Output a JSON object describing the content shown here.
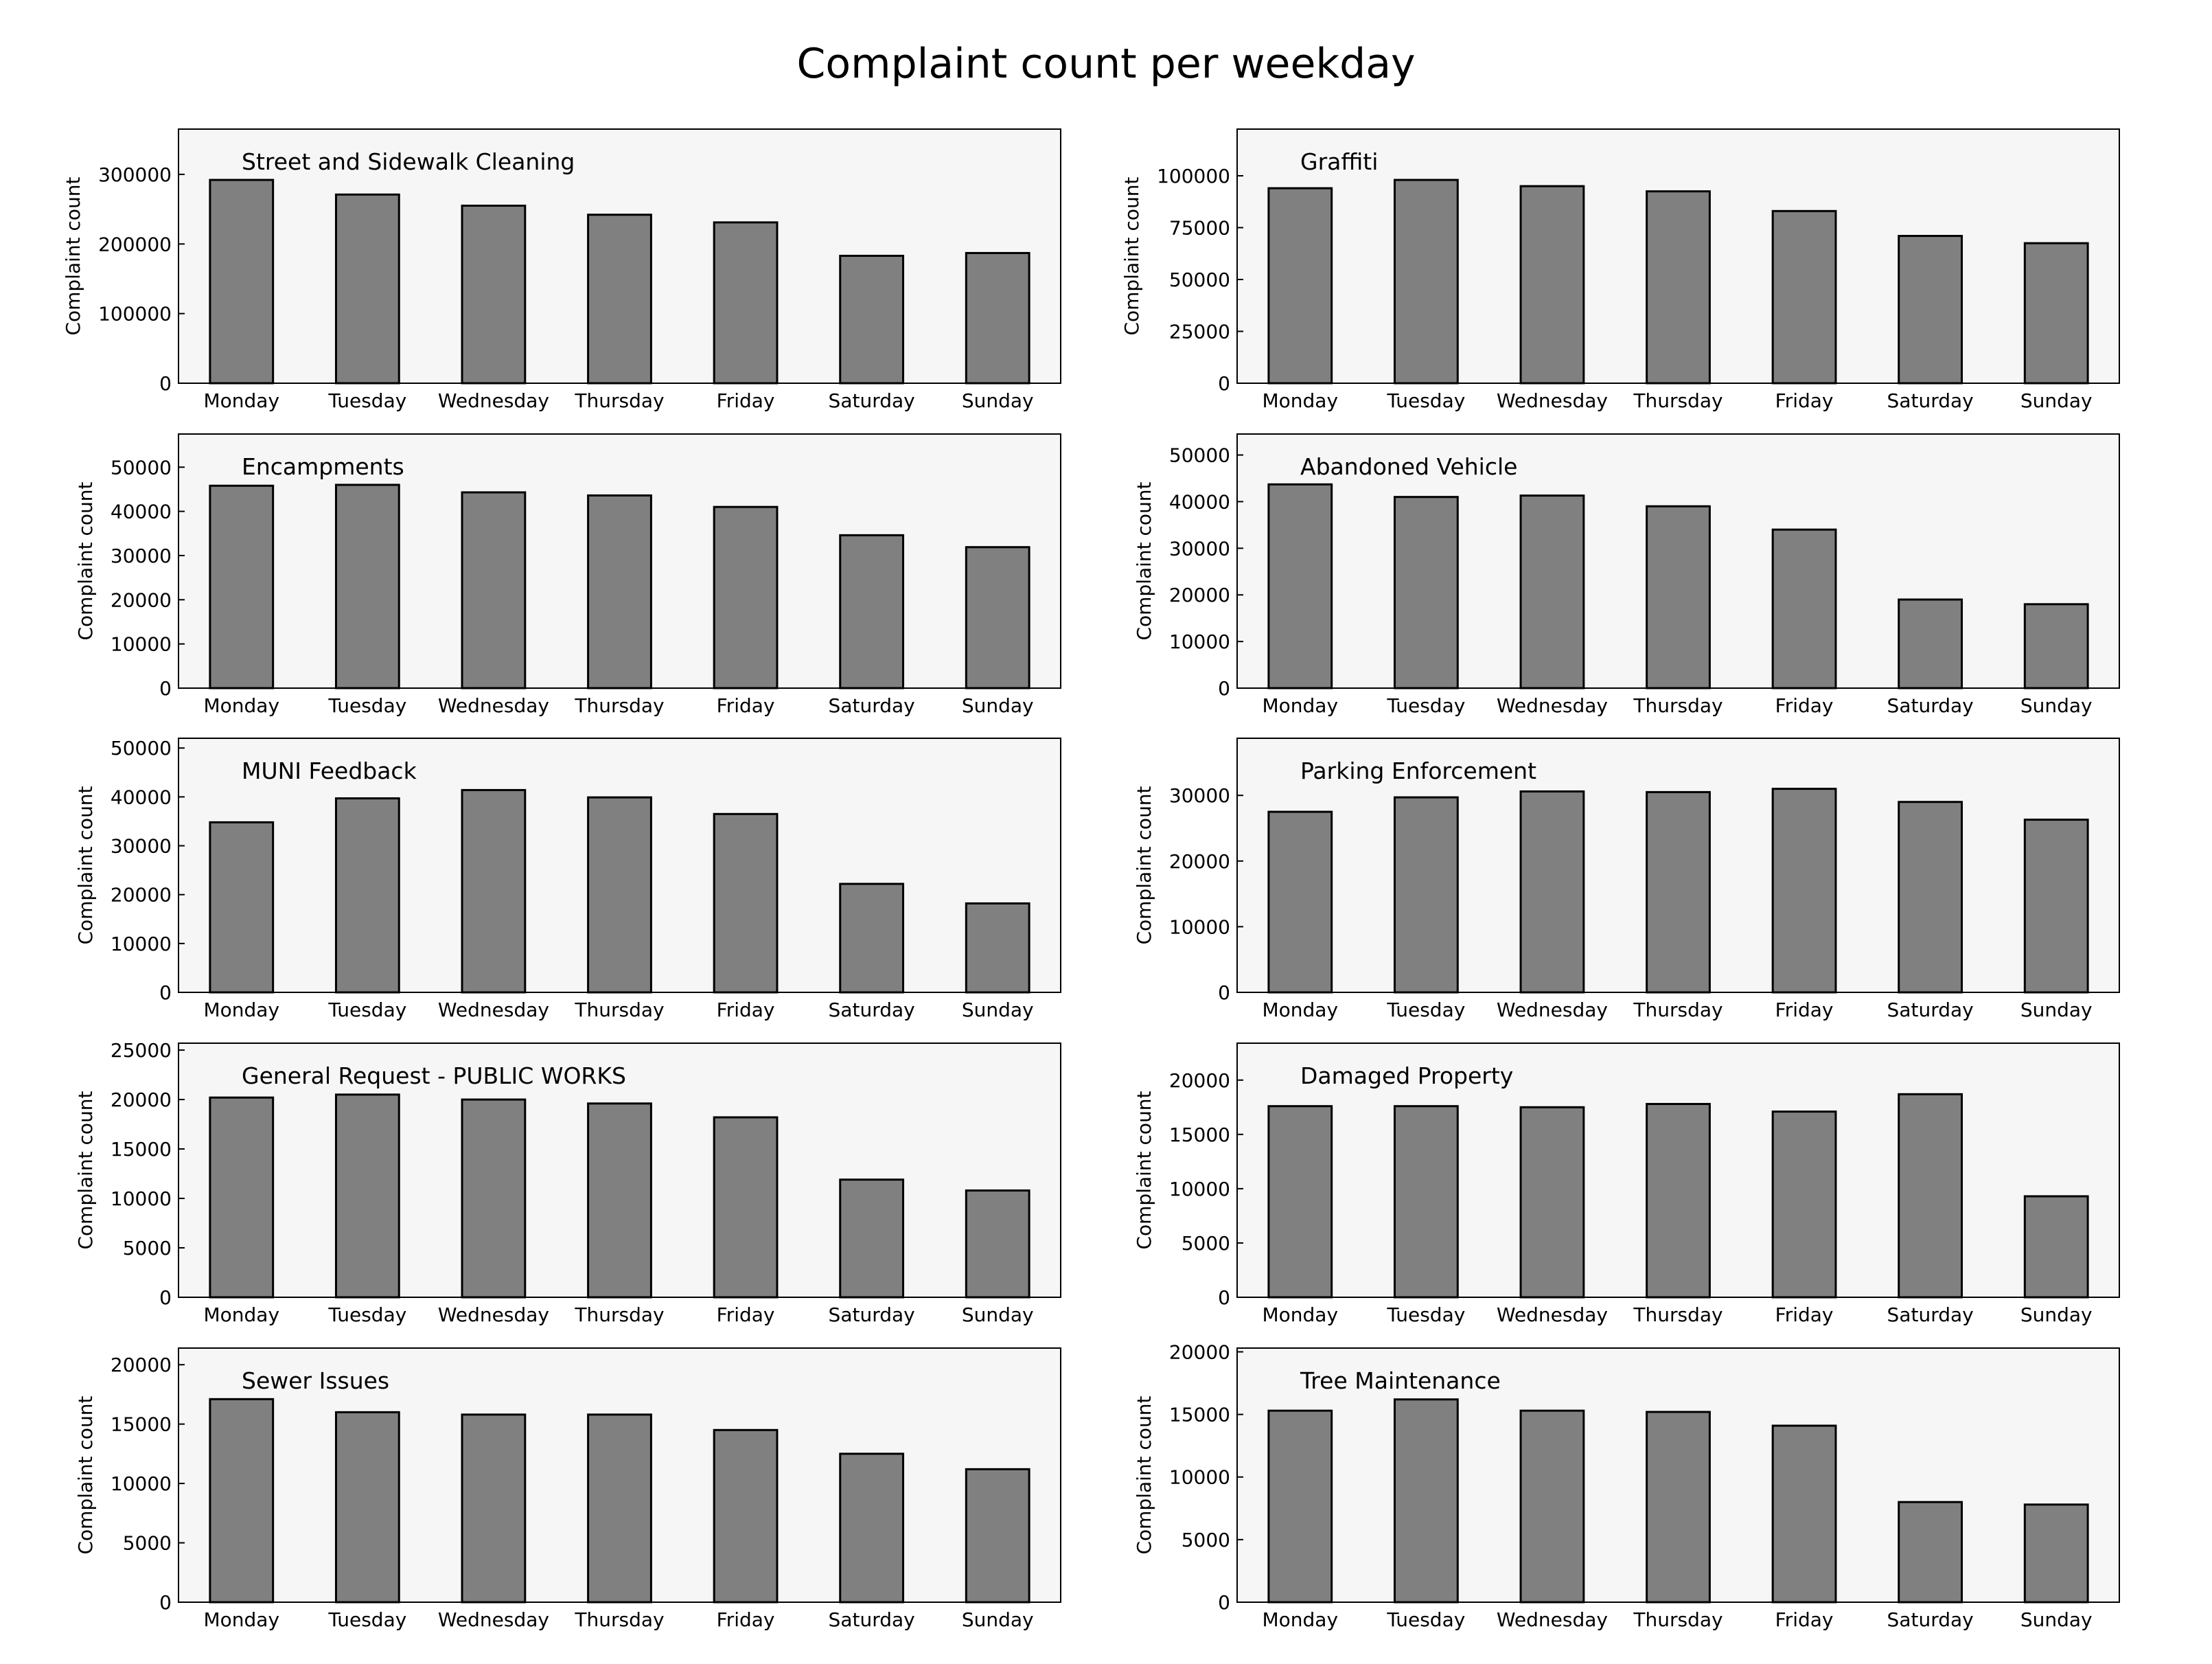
{
  "figure": {
    "title": "Complaint count per weekday"
  },
  "chart_data": [
    {
      "type": "bar",
      "title": "Street and Sidewalk Cleaning",
      "ylabel": "Complaint count",
      "xlabel": "",
      "categories": [
        "Monday",
        "Tuesday",
        "Wednesday",
        "Thursday",
        "Friday",
        "Saturday",
        "Sunday"
      ],
      "values": [
        292000,
        271000,
        255000,
        242000,
        231000,
        183000,
        187000
      ],
      "ylim": [
        0,
        365000
      ],
      "yticks": [
        0,
        100000,
        200000,
        300000
      ],
      "grid": false,
      "legend": "none"
    },
    {
      "type": "bar",
      "title": "Graffiti",
      "ylabel": "Complaint count",
      "xlabel": "",
      "categories": [
        "Monday",
        "Tuesday",
        "Wednesday",
        "Thursday",
        "Friday",
        "Saturday",
        "Sunday"
      ],
      "values": [
        94000,
        98000,
        95000,
        92500,
        83000,
        71000,
        67500
      ],
      "ylim": [
        0,
        122500
      ],
      "yticks": [
        0,
        25000,
        50000,
        75000,
        100000
      ],
      "grid": false,
      "legend": "none"
    },
    {
      "type": "bar",
      "title": "Encampments",
      "ylabel": "Complaint count",
      "xlabel": "",
      "categories": [
        "Monday",
        "Tuesday",
        "Wednesday",
        "Thursday",
        "Friday",
        "Saturday",
        "Sunday"
      ],
      "values": [
        45800,
        46000,
        44300,
        43600,
        41000,
        34600,
        31900
      ],
      "ylim": [
        0,
        57500
      ],
      "yticks": [
        0,
        10000,
        20000,
        30000,
        40000,
        50000
      ],
      "grid": false,
      "legend": "none"
    },
    {
      "type": "bar",
      "title": "Abandoned Vehicle",
      "ylabel": "Complaint count",
      "xlabel": "",
      "categories": [
        "Monday",
        "Tuesday",
        "Wednesday",
        "Thursday",
        "Friday",
        "Saturday",
        "Sunday"
      ],
      "values": [
        43700,
        41000,
        41300,
        39000,
        34000,
        19000,
        18000
      ],
      "ylim": [
        0,
        54500
      ],
      "yticks": [
        0,
        10000,
        20000,
        30000,
        40000,
        50000
      ],
      "grid": false,
      "legend": "none"
    },
    {
      "type": "bar",
      "title": "MUNI Feedback",
      "ylabel": "Complaint count",
      "xlabel": "",
      "categories": [
        "Monday",
        "Tuesday",
        "Wednesday",
        "Thursday",
        "Friday",
        "Saturday",
        "Sunday"
      ],
      "values": [
        34800,
        39700,
        41400,
        39900,
        36500,
        22200,
        18200
      ],
      "ylim": [
        0,
        52000
      ],
      "yticks": [
        0,
        10000,
        20000,
        30000,
        40000,
        50000
      ],
      "grid": false,
      "legend": "none"
    },
    {
      "type": "bar",
      "title": "Parking Enforcement",
      "ylabel": "Complaint count",
      "xlabel": "",
      "categories": [
        "Monday",
        "Tuesday",
        "Wednesday",
        "Thursday",
        "Friday",
        "Saturday",
        "Sunday"
      ],
      "values": [
        27500,
        29700,
        30600,
        30500,
        31000,
        29000,
        26300
      ],
      "ylim": [
        0,
        38700
      ],
      "yticks": [
        0,
        10000,
        20000,
        30000
      ],
      "grid": false,
      "legend": "none"
    },
    {
      "type": "bar",
      "title": "General Request - PUBLIC WORKS",
      "ylabel": "Complaint count",
      "xlabel": "",
      "categories": [
        "Monday",
        "Tuesday",
        "Wednesday",
        "Thursday",
        "Friday",
        "Saturday",
        "Sunday"
      ],
      "values": [
        20200,
        20500,
        20000,
        19600,
        18200,
        11900,
        10800
      ],
      "ylim": [
        0,
        25700
      ],
      "yticks": [
        0,
        5000,
        10000,
        15000,
        20000,
        25000
      ],
      "grid": false,
      "legend": "none"
    },
    {
      "type": "bar",
      "title": "Damaged Property",
      "ylabel": "Complaint count",
      "xlabel": "",
      "categories": [
        "Monday",
        "Tuesday",
        "Wednesday",
        "Thursday",
        "Friday",
        "Saturday",
        "Sunday"
      ],
      "values": [
        17600,
        17600,
        17500,
        17800,
        17100,
        18700,
        9300
      ],
      "ylim": [
        0,
        23400
      ],
      "yticks": [
        0,
        5000,
        10000,
        15000,
        20000
      ],
      "grid": false,
      "legend": "none"
    },
    {
      "type": "bar",
      "title": "Sewer Issues",
      "ylabel": "Complaint count",
      "xlabel": "",
      "categories": [
        "Monday",
        "Tuesday",
        "Wednesday",
        "Thursday",
        "Friday",
        "Saturday",
        "Sunday"
      ],
      "values": [
        17100,
        16000,
        15800,
        15800,
        14500,
        12500,
        11200
      ],
      "ylim": [
        0,
        21400
      ],
      "yticks": [
        0,
        5000,
        10000,
        15000,
        20000
      ],
      "grid": false,
      "legend": "none"
    },
    {
      "type": "bar",
      "title": "Tree Maintenance",
      "ylabel": "Complaint count",
      "xlabel": "",
      "categories": [
        "Monday",
        "Tuesday",
        "Wednesday",
        "Thursday",
        "Friday",
        "Saturday",
        "Sunday"
      ],
      "values": [
        15300,
        16200,
        15300,
        15200,
        14100,
        8000,
        7800
      ],
      "ylim": [
        0,
        20300
      ],
      "yticks": [
        0,
        5000,
        10000,
        15000,
        20000
      ],
      "grid": false,
      "legend": "none"
    }
  ]
}
